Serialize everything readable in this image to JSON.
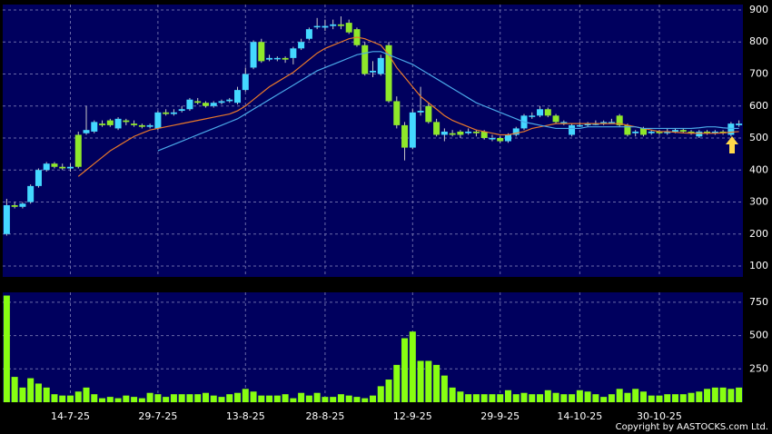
{
  "chart_data": [
    {
      "type": "candlestick",
      "open": [
        200,
        290,
        285,
        300,
        350,
        400,
        420,
        410,
        405,
        510,
        515,
        520,
        545,
        555,
        530,
        555,
        545,
        540,
        535,
        530,
        580,
        575,
        585,
        590,
        615,
        610,
        600,
        610,
        615,
        610,
        650,
        720,
        800,
        745,
        750,
        750,
        750,
        780,
        810,
        850,
        845,
        850,
        855,
        860,
        840,
        790,
        705,
        700,
        790,
        615,
        540,
        470,
        580,
        600,
        550,
        510,
        515,
        520,
        515,
        520,
        520,
        500,
        500,
        490,
        510,
        530,
        570,
        570,
        590,
        570,
        545,
        510,
        540,
        540,
        545,
        545,
        550,
        570,
        540,
        515,
        530,
        515,
        520,
        515,
        520,
        525,
        520,
        505,
        520,
        515,
        520,
        510,
        540
      ],
      "high": [
        310,
        300,
        300,
        355,
        405,
        425,
        425,
        420,
        420,
        520,
        600,
        555,
        555,
        560,
        565,
        560,
        555,
        545,
        545,
        585,
        590,
        590,
        600,
        625,
        625,
        615,
        615,
        620,
        625,
        660,
        720,
        805,
        810,
        760,
        755,
        755,
        785,
        810,
        845,
        875,
        870,
        870,
        880,
        870,
        845,
        800,
        740,
        760,
        800,
        630,
        550,
        590,
        660,
        610,
        560,
        530,
        525,
        525,
        530,
        525,
        525,
        510,
        505,
        515,
        535,
        575,
        580,
        600,
        595,
        575,
        555,
        545,
        550,
        550,
        555,
        555,
        560,
        575,
        545,
        525,
        535,
        525,
        525,
        530,
        530,
        530,
        525,
        525,
        525,
        525,
        525,
        550,
        555
      ],
      "low": [
        195,
        280,
        280,
        295,
        345,
        395,
        405,
        400,
        395,
        405,
        510,
        515,
        535,
        535,
        525,
        540,
        535,
        530,
        530,
        525,
        570,
        570,
        580,
        585,
        605,
        595,
        595,
        605,
        610,
        605,
        645,
        715,
        735,
        740,
        740,
        735,
        730,
        775,
        805,
        840,
        835,
        840,
        840,
        825,
        785,
        695,
        690,
        695,
        610,
        530,
        430,
        465,
        570,
        545,
        505,
        490,
        505,
        500,
        510,
        505,
        495,
        490,
        485,
        485,
        505,
        525,
        560,
        565,
        565,
        545,
        540,
        505,
        535,
        535,
        540,
        540,
        545,
        535,
        505,
        505,
        505,
        510,
        510,
        510,
        515,
        515,
        510,
        500,
        510,
        510,
        510,
        505,
        535
      ],
      "close": [
        290,
        285,
        295,
        350,
        400,
        420,
        410,
        405,
        410,
        410,
        525,
        550,
        540,
        540,
        560,
        550,
        540,
        535,
        540,
        580,
        575,
        580,
        590,
        620,
        610,
        600,
        610,
        615,
        620,
        650,
        700,
        800,
        740,
        750,
        750,
        745,
        780,
        800,
        840,
        850,
        850,
        855,
        850,
        830,
        790,
        700,
        710,
        750,
        615,
        540,
        470,
        580,
        585,
        550,
        510,
        520,
        510,
        510,
        520,
        515,
        500,
        500,
        490,
        510,
        530,
        570,
        570,
        590,
        570,
        550,
        550,
        540,
        540,
        545,
        545,
        550,
        550,
        540,
        510,
        520,
        510,
        520,
        515,
        520,
        525,
        520,
        515,
        520,
        515,
        520,
        515,
        545,
        545
      ],
      "up_color": "#44d8ff",
      "down_color": "#8fe82a",
      "series": [
        {
          "color": "#e8782a",
          "values": [
            null,
            null,
            null,
            null,
            null,
            null,
            null,
            null,
            null,
            380,
            400,
            420,
            440,
            460,
            475,
            490,
            505,
            515,
            525,
            530,
            535,
            540,
            545,
            550,
            555,
            560,
            565,
            570,
            575,
            585,
            600,
            620,
            640,
            660,
            675,
            690,
            705,
            725,
            745,
            765,
            780,
            790,
            800,
            810,
            815,
            810,
            800,
            790,
            760,
            720,
            690,
            660,
            630,
            610,
            590,
            570,
            555,
            545,
            535,
            525,
            520,
            515,
            510,
            510,
            515,
            520,
            530,
            535,
            540,
            545,
            545,
            545,
            545,
            545,
            545,
            545,
            545,
            545,
            540,
            535,
            530,
            525,
            520,
            520,
            518,
            516,
            515,
            515,
            515,
            515,
            516,
            518,
            520
          ]
        },
        {
          "color": "#4aa8e8",
          "values": [
            null,
            null,
            null,
            null,
            null,
            null,
            null,
            null,
            null,
            null,
            null,
            null,
            null,
            null,
            null,
            null,
            null,
            null,
            null,
            460,
            470,
            480,
            490,
            500,
            510,
            520,
            530,
            540,
            550,
            560,
            575,
            590,
            605,
            620,
            635,
            650,
            665,
            680,
            695,
            710,
            720,
            730,
            740,
            750,
            760,
            765,
            770,
            770,
            760,
            750,
            740,
            730,
            715,
            700,
            685,
            670,
            655,
            640,
            625,
            610,
            600,
            590,
            580,
            570,
            560,
            550,
            545,
            540,
            535,
            530,
            530,
            530,
            530,
            535,
            535,
            535,
            535,
            535,
            535,
            535,
            530,
            530,
            530,
            530,
            530,
            530,
            530,
            532,
            535,
            535,
            532,
            530,
            530
          ]
        }
      ],
      "ylim": [
        66,
        917
      ],
      "yticks": [
        100,
        200,
        300,
        400,
        500,
        600,
        700,
        800,
        900
      ],
      "grid": true
    },
    {
      "type": "bar",
      "categories": [
        null,
        null,
        null,
        null,
        null,
        null,
        null,
        null,
        "14-7-25",
        null,
        null,
        null,
        null,
        null,
        null,
        null,
        null,
        null,
        null,
        "29-7-25",
        null,
        null,
        null,
        null,
        null,
        null,
        null,
        null,
        null,
        null,
        "13-8-25",
        null,
        null,
        null,
        null,
        null,
        null,
        null,
        null,
        null,
        "28-8-25",
        null,
        null,
        null,
        null,
        null,
        null,
        null,
        null,
        null,
        null,
        "12-9-25",
        null,
        null,
        null,
        null,
        null,
        null,
        null,
        null,
        null,
        null,
        "29-9-25",
        null,
        null,
        null,
        null,
        null,
        null,
        null,
        null,
        null,
        "14-10-25",
        null,
        null,
        null,
        null,
        null,
        null,
        null,
        null,
        null,
        "30-10-25",
        null,
        null,
        null,
        null,
        null,
        null,
        null,
        null,
        null,
        null
      ],
      "values": [
        800,
        190,
        110,
        180,
        140,
        110,
        60,
        50,
        50,
        80,
        110,
        60,
        30,
        40,
        30,
        50,
        40,
        30,
        70,
        60,
        40,
        60,
        60,
        60,
        60,
        70,
        50,
        40,
        60,
        70,
        100,
        80,
        50,
        50,
        50,
        60,
        30,
        70,
        50,
        70,
        40,
        40,
        60,
        50,
        40,
        30,
        50,
        120,
        170,
        280,
        480,
        530,
        310,
        310,
        280,
        200,
        110,
        80,
        60,
        60,
        60,
        60,
        60,
        90,
        60,
        70,
        60,
        60,
        90,
        70,
        60,
        60,
        90,
        80,
        60,
        40,
        60,
        100,
        70,
        100,
        80,
        50,
        50,
        60,
        60,
        60,
        70,
        80,
        100,
        110,
        110,
        100,
        110
      ],
      "color": "#88ff11",
      "ylim": [
        0,
        824
      ],
      "yticks": [
        250,
        500,
        750
      ],
      "grid": true,
      "annotation": "Copyright by AASTOCKS.com Ltd."
    }
  ]
}
